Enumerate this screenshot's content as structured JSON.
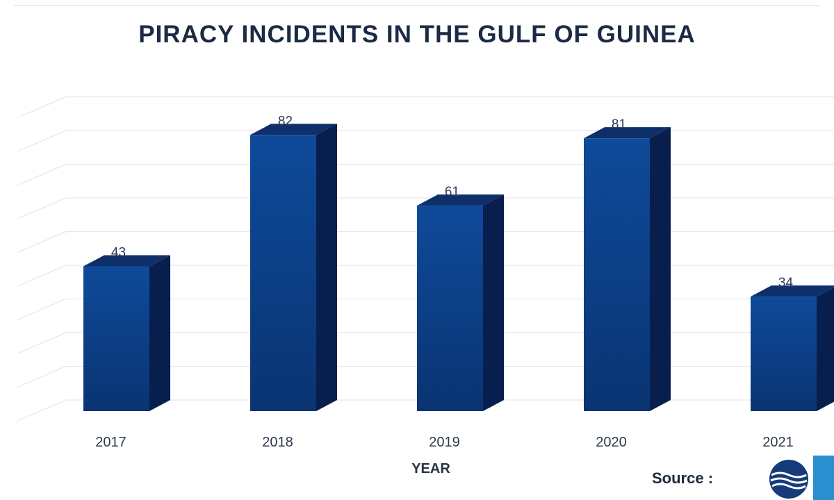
{
  "chart_data": {
    "type": "bar",
    "title": "PIRACY INCIDENTS IN THE GULF OF GUINEA",
    "xlabel": "YEAR",
    "ylabel": "",
    "categories": [
      "2017",
      "2018",
      "2019",
      "2020",
      "2021"
    ],
    "values": [
      43,
      82,
      61,
      81,
      34
    ],
    "data_labels": [
      "43",
      "82",
      "61",
      "81",
      "34"
    ],
    "ylim": [
      0,
      90
    ],
    "grid": true,
    "style": "3d-bar",
    "bar_color": "#0d3d86",
    "bar_side_color": "#081f4d",
    "bar_top_color": "#0e2f6a"
  },
  "source": {
    "label": "Source :"
  }
}
